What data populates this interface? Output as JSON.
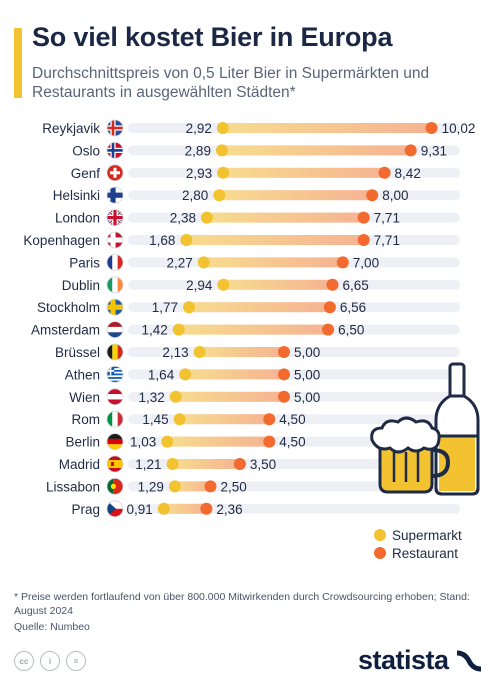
{
  "header": {
    "title": "So viel kostet Bier in Europa",
    "subtitle": "Durchschnittspreis von 0,5 Liter Bier in Supermärkten und Restaurants in ausgewählten Städten*"
  },
  "footer": {
    "footnote": "* Preise werden fortlaufend von über 800.000 Mitwirkenden durch Crowdsourcing erhoben; Stand: August 2024",
    "source": "Quelle: Numbeo",
    "brand": "statista"
  },
  "colors": {
    "accent": "#f2c230",
    "supermarket": "#f2c230",
    "restaurant": "#f26a2e",
    "track": "#eef0f5"
  },
  "chart_data": {
    "type": "dumbbell",
    "legend_placement": "bottom-right",
    "categories": [
      "Reykjavik",
      "Oslo",
      "Genf",
      "Helsinki",
      "London",
      "Kopenhagen",
      "Paris",
      "Dublin",
      "Stockholm",
      "Amsterdam",
      "Brüssel",
      "Athen",
      "Wien",
      "Rom",
      "Berlin",
      "Madrid",
      "Lissabon",
      "Prag"
    ],
    "category_icons": [
      "flag-iceland-icon",
      "flag-norway-icon",
      "flag-switzerland-icon",
      "flag-finland-icon",
      "flag-uk-icon",
      "flag-denmark-icon",
      "flag-france-icon",
      "flag-ireland-icon",
      "flag-sweden-icon",
      "flag-netherlands-icon",
      "flag-belgium-icon",
      "flag-greece-icon",
      "flag-austria-icon",
      "flag-italy-icon",
      "flag-germany-icon",
      "flag-spain-icon",
      "flag-portugal-icon",
      "flag-czechia-icon"
    ],
    "series": [
      {
        "name": "Supermarkt",
        "values": [
          2.92,
          2.89,
          2.93,
          2.8,
          2.38,
          1.68,
          2.27,
          2.94,
          1.77,
          1.42,
          2.13,
          1.64,
          1.32,
          1.45,
          1.03,
          1.21,
          1.29,
          0.91
        ],
        "labels": [
          "2,92",
          "2,89",
          "2,93",
          "2,80",
          "2,38",
          "1,68",
          "2,27",
          "2,94",
          "1,77",
          "1,42",
          "2,13",
          "1,64",
          "1,32",
          "1,45",
          "1,03",
          "1,21",
          "1,29",
          "0,91"
        ]
      },
      {
        "name": "Restaurant",
        "values": [
          10.02,
          9.31,
          8.42,
          8.0,
          7.71,
          7.71,
          7.0,
          6.65,
          6.56,
          6.5,
          5.0,
          5.0,
          5.0,
          4.5,
          4.5,
          3.5,
          2.5,
          2.36
        ],
        "labels": [
          "10,02",
          "9,31",
          "8,42",
          "8,00",
          "7,71",
          "7,71",
          "7,00",
          "6,65",
          "6,56",
          "6,50",
          "5,00",
          "5,00",
          "5,00",
          "4,50",
          "4,50",
          "3,50",
          "2,50",
          "2,36"
        ]
      }
    ]
  }
}
